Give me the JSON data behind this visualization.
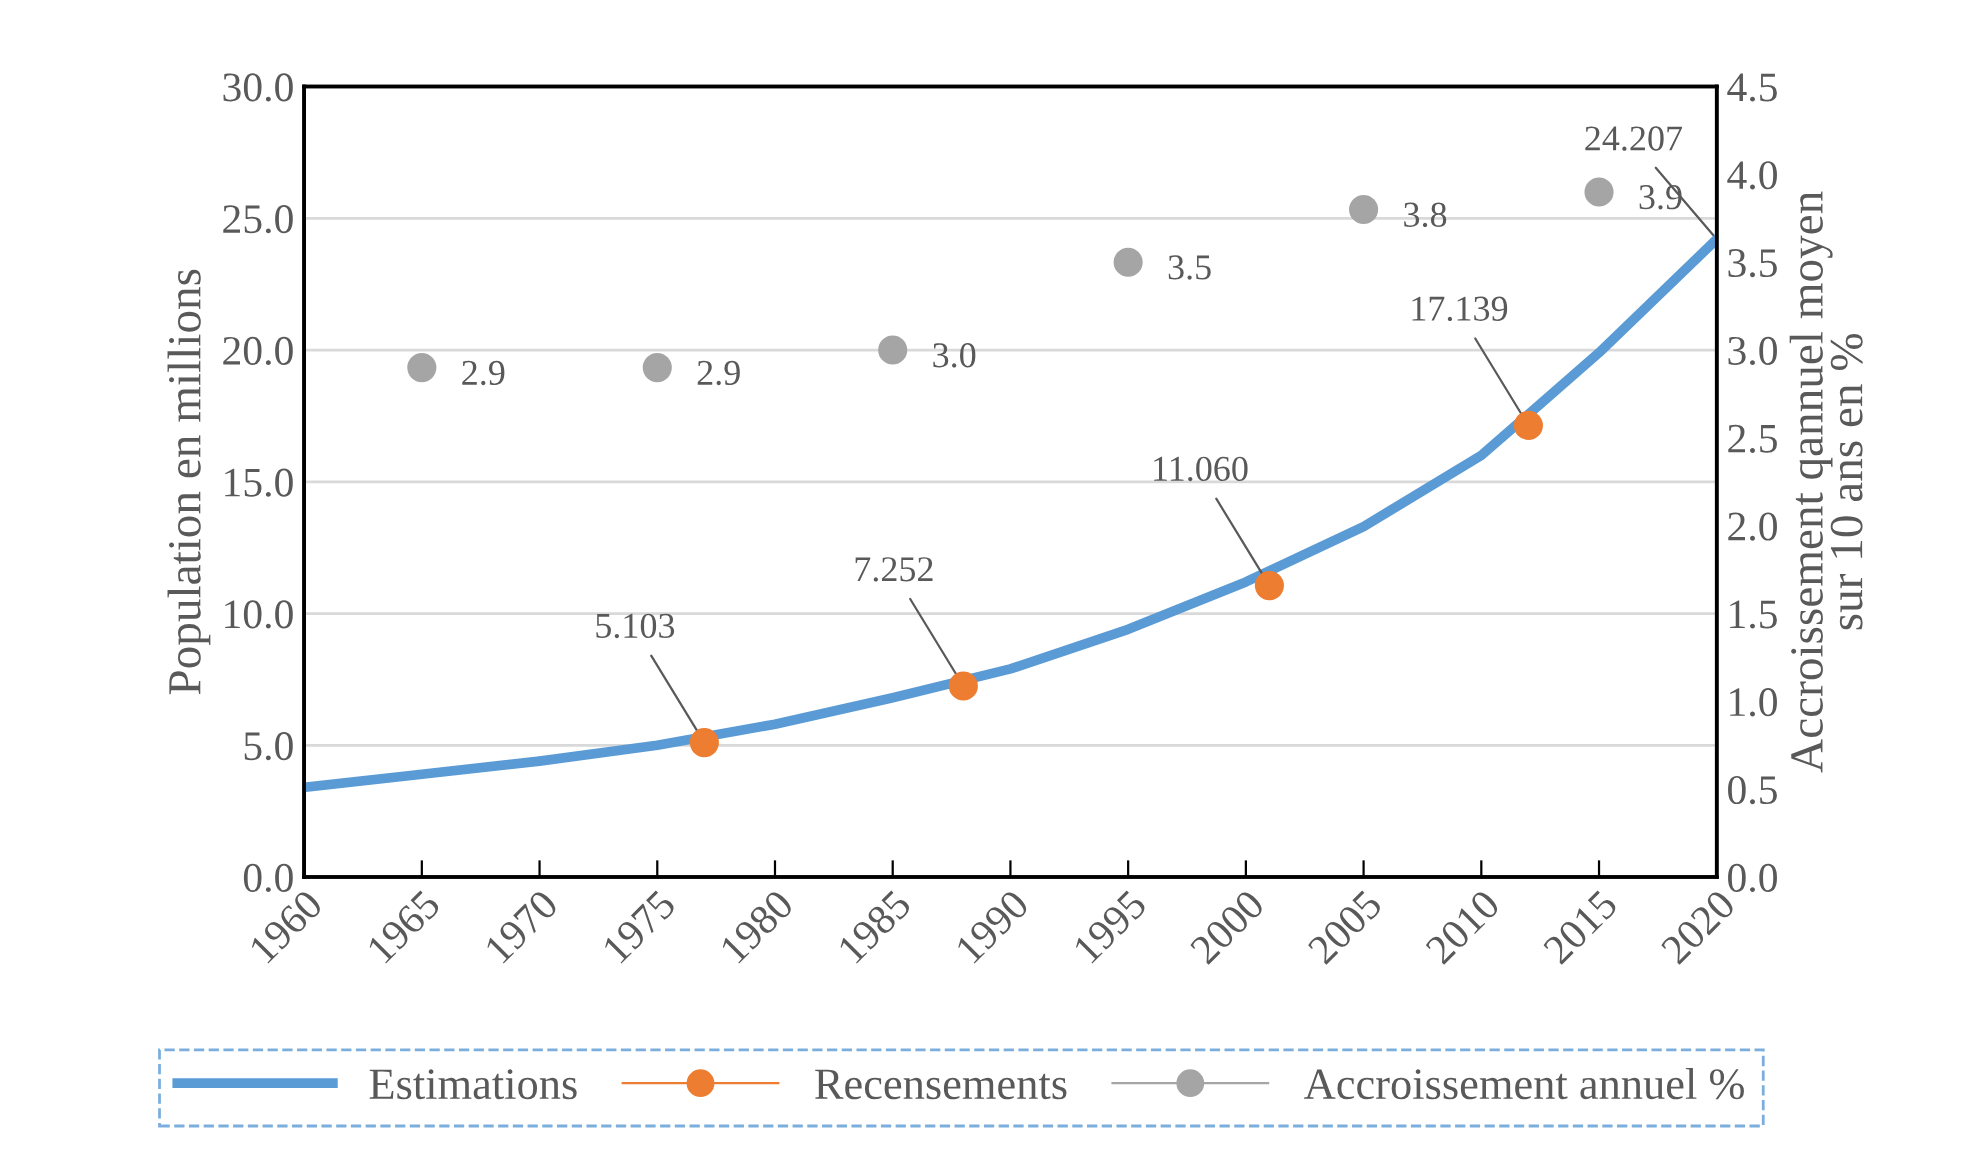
{
  "chart_data": {
    "type": "line",
    "ylabel": "Population en millions",
    "y2label": "Accroissement qannuel moyen\nsur 10 ans en %",
    "series": [
      {
        "name": "Estimations",
        "color": "#5b9bd5",
        "marker": "none",
        "x": [
          1960,
          1965,
          1970,
          1975,
          1980,
          1985,
          1990,
          1995,
          2000,
          2005,
          2010,
          2015,
          2020
        ],
        "values": [
          3.4,
          3.9,
          4.4,
          5.0,
          5.8,
          6.8,
          7.9,
          9.4,
          11.2,
          13.3,
          16.0,
          19.9,
          24.207
        ],
        "value_labels": [
          null,
          null,
          null,
          null,
          null,
          null,
          null,
          null,
          null,
          null,
          null,
          null,
          "24.207"
        ]
      },
      {
        "name": "Recensements",
        "type": "scatter",
        "color": "#ed7d31",
        "marker": "circle",
        "x": [
          1977,
          1988,
          2001,
          2012
        ],
        "values": [
          5.103,
          7.252,
          11.06,
          17.139
        ],
        "value_labels": [
          "5.103",
          "7.252",
          "11.060",
          "17.139"
        ]
      },
      {
        "name": "Accroissement annuel %",
        "type": "scatter",
        "axis": "y2",
        "color": "#a5a5a5",
        "marker": "circle",
        "x": [
          1965,
          1975,
          1985,
          1995,
          2005,
          2015
        ],
        "values": [
          2.9,
          2.9,
          3.0,
          3.5,
          3.8,
          3.9
        ],
        "value_labels": [
          "2.9",
          "2.9",
          "3.0",
          "3.5",
          "3.8",
          "3.9"
        ]
      }
    ],
    "xlim": [
      1960,
      2020
    ],
    "xticks": [
      1960,
      1965,
      1970,
      1975,
      1980,
      1985,
      1990,
      1995,
      2000,
      2005,
      2010,
      2015,
      2020
    ],
    "ylim": [
      0,
      30
    ],
    "yticks": [
      {
        "value": 0,
        "label": "0.0"
      },
      {
        "value": 5,
        "label": "5.0"
      },
      {
        "value": 10,
        "label": "10.0"
      },
      {
        "value": 15,
        "label": "15.0"
      },
      {
        "value": 20,
        "label": "20.0"
      },
      {
        "value": 25,
        "label": "25.0"
      },
      {
        "value": 30,
        "label": "30.0"
      }
    ],
    "y2lim": [
      0,
      4.5
    ],
    "y2ticks": [
      {
        "value": 0,
        "label": "0.0"
      },
      {
        "value": 0.5,
        "label": "0.5"
      },
      {
        "value": 1,
        "label": "1.0"
      },
      {
        "value": 1.5,
        "label": "1.5"
      },
      {
        "value": 2,
        "label": "2.0"
      },
      {
        "value": 2.5,
        "label": "2.5"
      },
      {
        "value": 3,
        "label": "3.0"
      },
      {
        "value": 3.5,
        "label": "3.5"
      },
      {
        "value": 4,
        "label": "4.0"
      },
      {
        "value": 4.5,
        "label": "4.5"
      }
    ],
    "grid": "y",
    "legend": "bottom"
  }
}
